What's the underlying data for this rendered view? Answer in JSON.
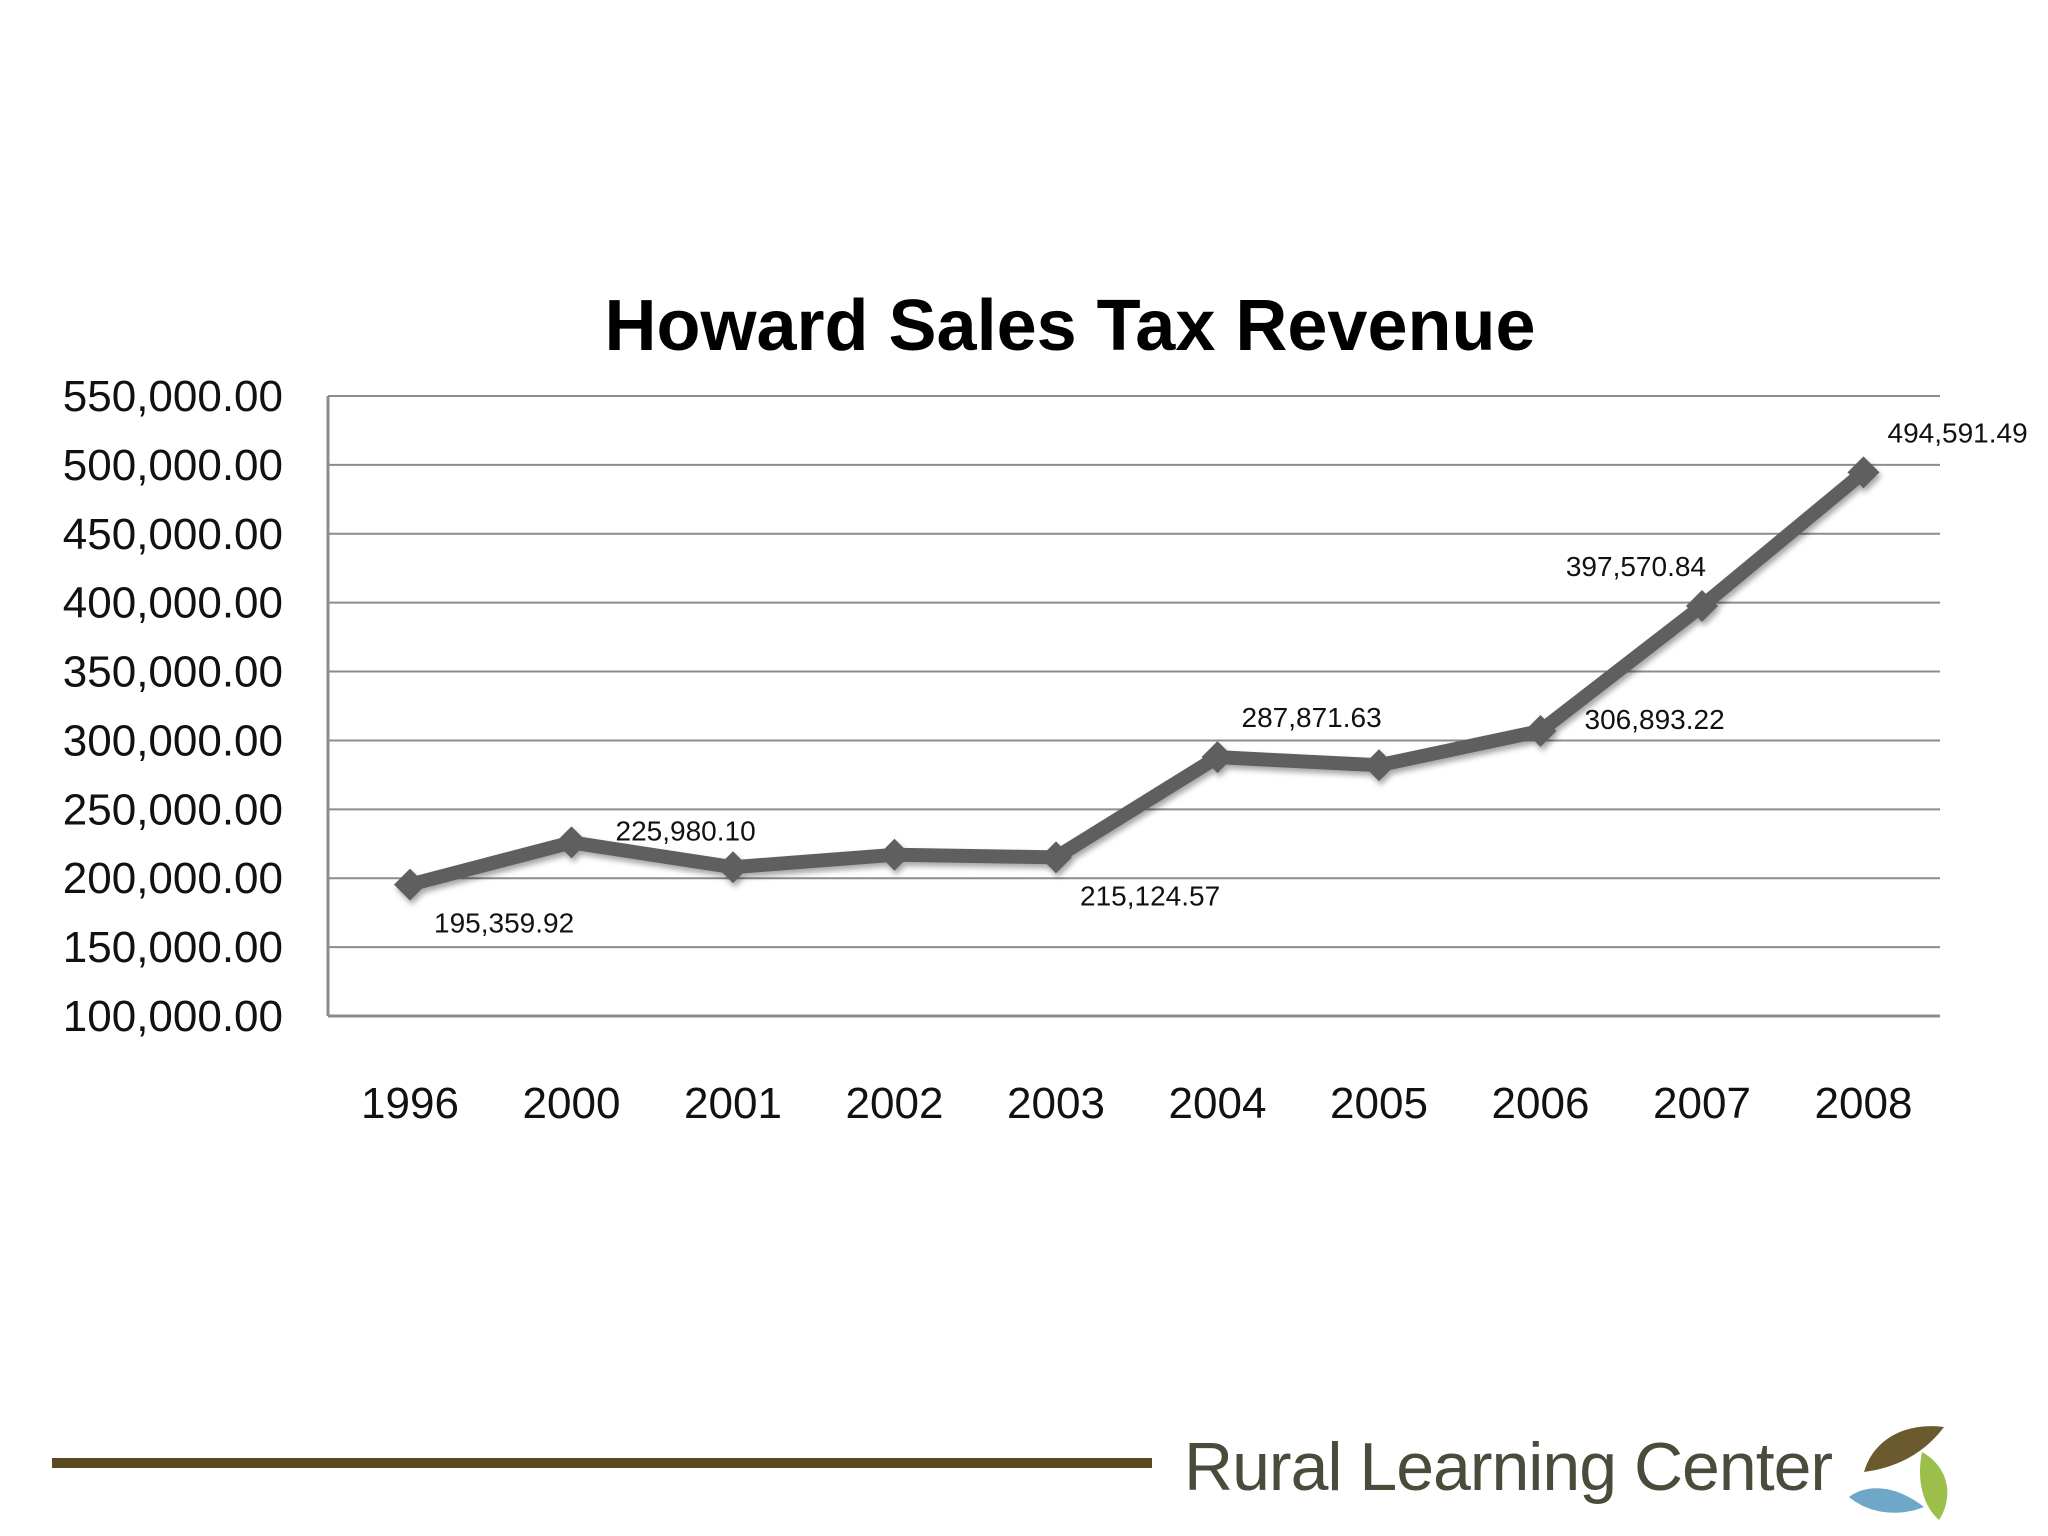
{
  "chart_data": {
    "type": "line",
    "title": "Howard Sales Tax Revenue",
    "categories": [
      "1996",
      "2000",
      "2001",
      "2002",
      "2003",
      "2004",
      "2005",
      "2006",
      "2007",
      "2008"
    ],
    "series": [
      {
        "values": [
          195359.92,
          225980.1,
          208000,
          217000,
          215124.57,
          287871.63,
          282000,
          306893.22,
          397570.84,
          494591.49
        ]
      }
    ],
    "data_labels": [
      {
        "index": 0,
        "text": "195,359.92",
        "position": "below-right"
      },
      {
        "index": 1,
        "text": "225,980.10",
        "position": "right"
      },
      {
        "index": 4,
        "text": "215,124.57",
        "position": "below-right"
      },
      {
        "index": 5,
        "text": "287,871.63",
        "position": "above-right"
      },
      {
        "index": 7,
        "text": "306,893.22",
        "position": "right"
      },
      {
        "index": 8,
        "text": "397,570.84",
        "position": "above-left"
      },
      {
        "index": 9,
        "text": "494,591.49",
        "position": "above-right"
      }
    ],
    "yticks": [
      "100,000.00",
      "150,000.00",
      "200,000.00",
      "250,000.00",
      "300,000.00",
      "350,000.00",
      "400,000.00",
      "450,000.00",
      "500,000.00",
      "550,000.00"
    ],
    "ylim": [
      100000,
      550000
    ],
    "grid": true,
    "line_color": "#5f5f5f"
  },
  "footer": {
    "brand": "Rural Learning Center",
    "rule_color": "#5a4a1f",
    "logo_icon": "leaf-logo-icon"
  }
}
